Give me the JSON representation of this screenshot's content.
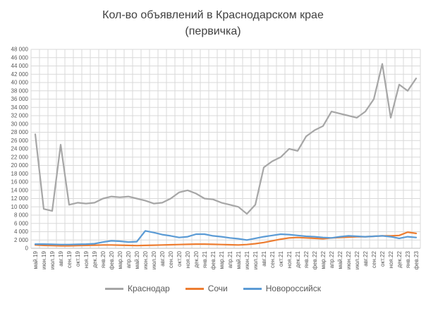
{
  "chart_data": {
    "type": "line",
    "title": "Кол-во объявлений в Краснодарском крае",
    "subtitle": "(первичка)",
    "xlabel": "",
    "ylabel": "",
    "ylim": [
      0,
      48000
    ],
    "ytick_step": 2000,
    "grid": "both",
    "legend_position": "bottom",
    "categories": [
      "май.19",
      "июн.19",
      "июл.19",
      "авг.19",
      "сен.19",
      "окт.19",
      "ноя.19",
      "дек.19",
      "янв.20",
      "фев.20",
      "мар.20",
      "апр.20",
      "май.20",
      "июн.20",
      "июл.20",
      "авг.20",
      "сен.20",
      "окт.20",
      "ноя.20",
      "дек.20",
      "янв.21",
      "фев.21",
      "мар.21",
      "апр.21",
      "май.21",
      "июн.21",
      "июл.21",
      "авг.21",
      "сен.21",
      "окт.21",
      "ноя.21",
      "дек.21",
      "янв.22",
      "фев.22",
      "мар.22",
      "апр.22",
      "май.22",
      "июн.22",
      "июл.22",
      "авг.22",
      "сен.22",
      "окт.22",
      "ноя.22",
      "дек.22",
      "янв.23",
      "фев.23"
    ],
    "series": [
      {
        "name": "Краснодар",
        "color": "#A6A6A6",
        "values": [
          27500,
          9500,
          9000,
          25000,
          10500,
          11000,
          10800,
          11000,
          12000,
          12500,
          12300,
          12500,
          12000,
          11500,
          10800,
          11000,
          12000,
          13500,
          14000,
          13200,
          12000,
          11800,
          11000,
          10500,
          10000,
          8300,
          10500,
          19500,
          21000,
          22000,
          24000,
          23500,
          27000,
          28500,
          29500,
          33000,
          32500,
          32000,
          31500,
          33000,
          36000,
          44500,
          31500,
          39500,
          38000,
          41000
        ]
      },
      {
        "name": "Сочи",
        "color": "#ED7D31",
        "values": [
          800,
          700,
          650,
          600,
          600,
          650,
          700,
          750,
          800,
          800,
          750,
          700,
          650,
          700,
          750,
          800,
          850,
          900,
          950,
          1000,
          1000,
          950,
          900,
          850,
          800,
          900,
          1100,
          1400,
          1800,
          2200,
          2500,
          2600,
          2500,
          2400,
          2300,
          2500,
          2600,
          2700,
          2800,
          2800,
          2900,
          3000,
          3000,
          3100,
          3900,
          3600
        ]
      },
      {
        "name": "Новороссийск",
        "color": "#5B9BD5",
        "values": [
          1000,
          1000,
          950,
          900,
          900,
          950,
          1000,
          1100,
          1500,
          1800,
          1700,
          1500,
          1600,
          4200,
          3800,
          3300,
          3000,
          2600,
          2800,
          3400,
          3400,
          3000,
          2800,
          2500,
          2300,
          2000,
          2400,
          2800,
          3100,
          3400,
          3300,
          3100,
          2900,
          2800,
          2600,
          2500,
          2800,
          3000,
          2900,
          2800,
          2900,
          3000,
          2800,
          2400,
          2800,
          2600
        ]
      }
    ]
  }
}
